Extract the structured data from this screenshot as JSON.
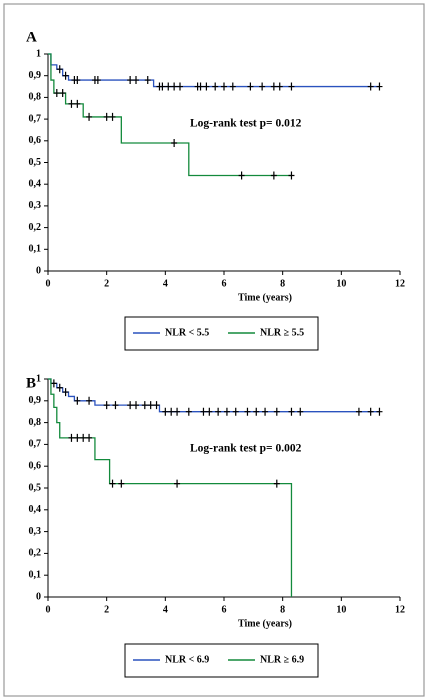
{
  "chart_data": [
    {
      "type": "step",
      "panel_label": "A",
      "annotation": "Log-rank test p= 0.012",
      "x_label": "Time (years)",
      "xlim": [
        0,
        12
      ],
      "xticks": [
        0,
        2,
        4,
        6,
        8,
        10,
        12
      ],
      "ylim": [
        0,
        1
      ],
      "yticks": [
        0,
        {
          "value": 0.1,
          "label": "0,1"
        },
        {
          "value": 0.2,
          "label": "0,2"
        },
        {
          "value": 0.3,
          "label": "0,3"
        },
        {
          "value": 0.4,
          "label": "0,4"
        },
        {
          "value": 0.5,
          "label": "0,5"
        },
        {
          "value": 0.6,
          "label": "0,6"
        },
        {
          "value": 0.7,
          "label": "0,7"
        },
        {
          "value": 0.8,
          "label": "0,8"
        },
        {
          "value": 0.9,
          "label": "0,9"
        },
        1
      ],
      "series": [
        {
          "name": "NLR < 5.5",
          "color": "#2a52be",
          "x": [
            0,
            0.1,
            0.3,
            0.5,
            0.7,
            3.6,
            11.3
          ],
          "values": [
            1,
            0.95,
            0.93,
            0.9,
            0.88,
            0.85,
            0.85
          ],
          "censor_x": [
            0.4,
            0.6,
            0.9,
            1.0,
            1.6,
            1.7,
            2.8,
            3.0,
            3.4,
            3.8,
            3.9,
            4.1,
            4.3,
            4.5,
            5.1,
            5.2,
            5.4,
            5.7,
            6.0,
            6.3,
            6.9,
            7.3,
            7.7,
            7.9,
            8.3,
            11.0,
            11.3
          ],
          "censor_y": [
            0.93,
            0.9,
            0.88,
            0.88,
            0.88,
            0.88,
            0.88,
            0.88,
            0.88,
            0.85,
            0.85,
            0.85,
            0.85,
            0.85,
            0.85,
            0.85,
            0.85,
            0.85,
            0.85,
            0.85,
            0.85,
            0.85,
            0.85,
            0.85,
            0.85,
            0.85,
            0.85
          ]
        },
        {
          "name": "NLR ≥ 5.5",
          "color": "#138a3c",
          "x": [
            0,
            0.1,
            0.2,
            0.6,
            1.2,
            2.5,
            4.8,
            8.3
          ],
          "values": [
            1,
            0.88,
            0.82,
            0.77,
            0.71,
            0.59,
            0.44,
            0.44
          ],
          "censor_x": [
            0.3,
            0.5,
            0.8,
            1.0,
            1.4,
            2.0,
            2.2,
            4.3,
            6.6,
            7.7,
            8.3
          ],
          "censor_y": [
            0.82,
            0.82,
            0.77,
            0.77,
            0.71,
            0.71,
            0.71,
            0.59,
            0.44,
            0.44,
            0.44
          ]
        }
      ]
    },
    {
      "type": "step",
      "panel_label": "B",
      "annotation": "Log-rank test p= 0.002",
      "x_label": "Time (years)",
      "xlim": [
        0,
        12
      ],
      "xticks": [
        0,
        2,
        4,
        6,
        8,
        10,
        12
      ],
      "ylim": [
        0,
        1
      ],
      "yticks": [
        0,
        {
          "value": 0.1,
          "label": "0,1"
        },
        {
          "value": 0.2,
          "label": "0,2"
        },
        {
          "value": 0.3,
          "label": "0,3"
        },
        {
          "value": 0.4,
          "label": "0,4"
        },
        {
          "value": 0.5,
          "label": "0,5"
        },
        {
          "value": 0.6,
          "label": "0,6"
        },
        {
          "value": 0.7,
          "label": "0,7"
        },
        {
          "value": 0.8,
          "label": "0,8"
        },
        {
          "value": 0.9,
          "label": "0,9"
        },
        1
      ],
      "series": [
        {
          "name": "NLR < 6.9",
          "color": "#2a52be",
          "x": [
            0,
            0.1,
            0.3,
            0.5,
            0.7,
            0.9,
            1.6,
            3.8,
            11.3
          ],
          "values": [
            1,
            0.98,
            0.96,
            0.94,
            0.92,
            0.9,
            0.88,
            0.85,
            0.85
          ],
          "censor_x": [
            0.2,
            0.4,
            0.6,
            1.0,
            1.4,
            2.0,
            2.3,
            2.8,
            3.0,
            3.3,
            3.5,
            3.7,
            4.0,
            4.2,
            4.4,
            4.8,
            5.3,
            5.5,
            5.8,
            6.1,
            6.4,
            6.8,
            7.1,
            7.4,
            7.8,
            8.3,
            8.6,
            10.6,
            11.0,
            11.3
          ],
          "censor_y": [
            0.98,
            0.96,
            0.94,
            0.9,
            0.9,
            0.88,
            0.88,
            0.88,
            0.88,
            0.88,
            0.88,
            0.88,
            0.85,
            0.85,
            0.85,
            0.85,
            0.85,
            0.85,
            0.85,
            0.85,
            0.85,
            0.85,
            0.85,
            0.85,
            0.85,
            0.85,
            0.85,
            0.85,
            0.85,
            0.85
          ]
        },
        {
          "name": "NLR ≥ 6.9",
          "color": "#138a3c",
          "x": [
            0,
            0.1,
            0.2,
            0.3,
            0.4,
            1.6,
            2.1,
            8.3
          ],
          "values": [
            1,
            0.93,
            0.87,
            0.8,
            0.73,
            0.63,
            0.52,
            0
          ],
          "censor_x": [
            0.8,
            1.0,
            1.2,
            1.4,
            2.2,
            2.5,
            4.4,
            7.8
          ],
          "censor_y": [
            0.73,
            0.73,
            0.73,
            0.73,
            0.52,
            0.52,
            0.52,
            0.52
          ]
        }
      ]
    }
  ]
}
